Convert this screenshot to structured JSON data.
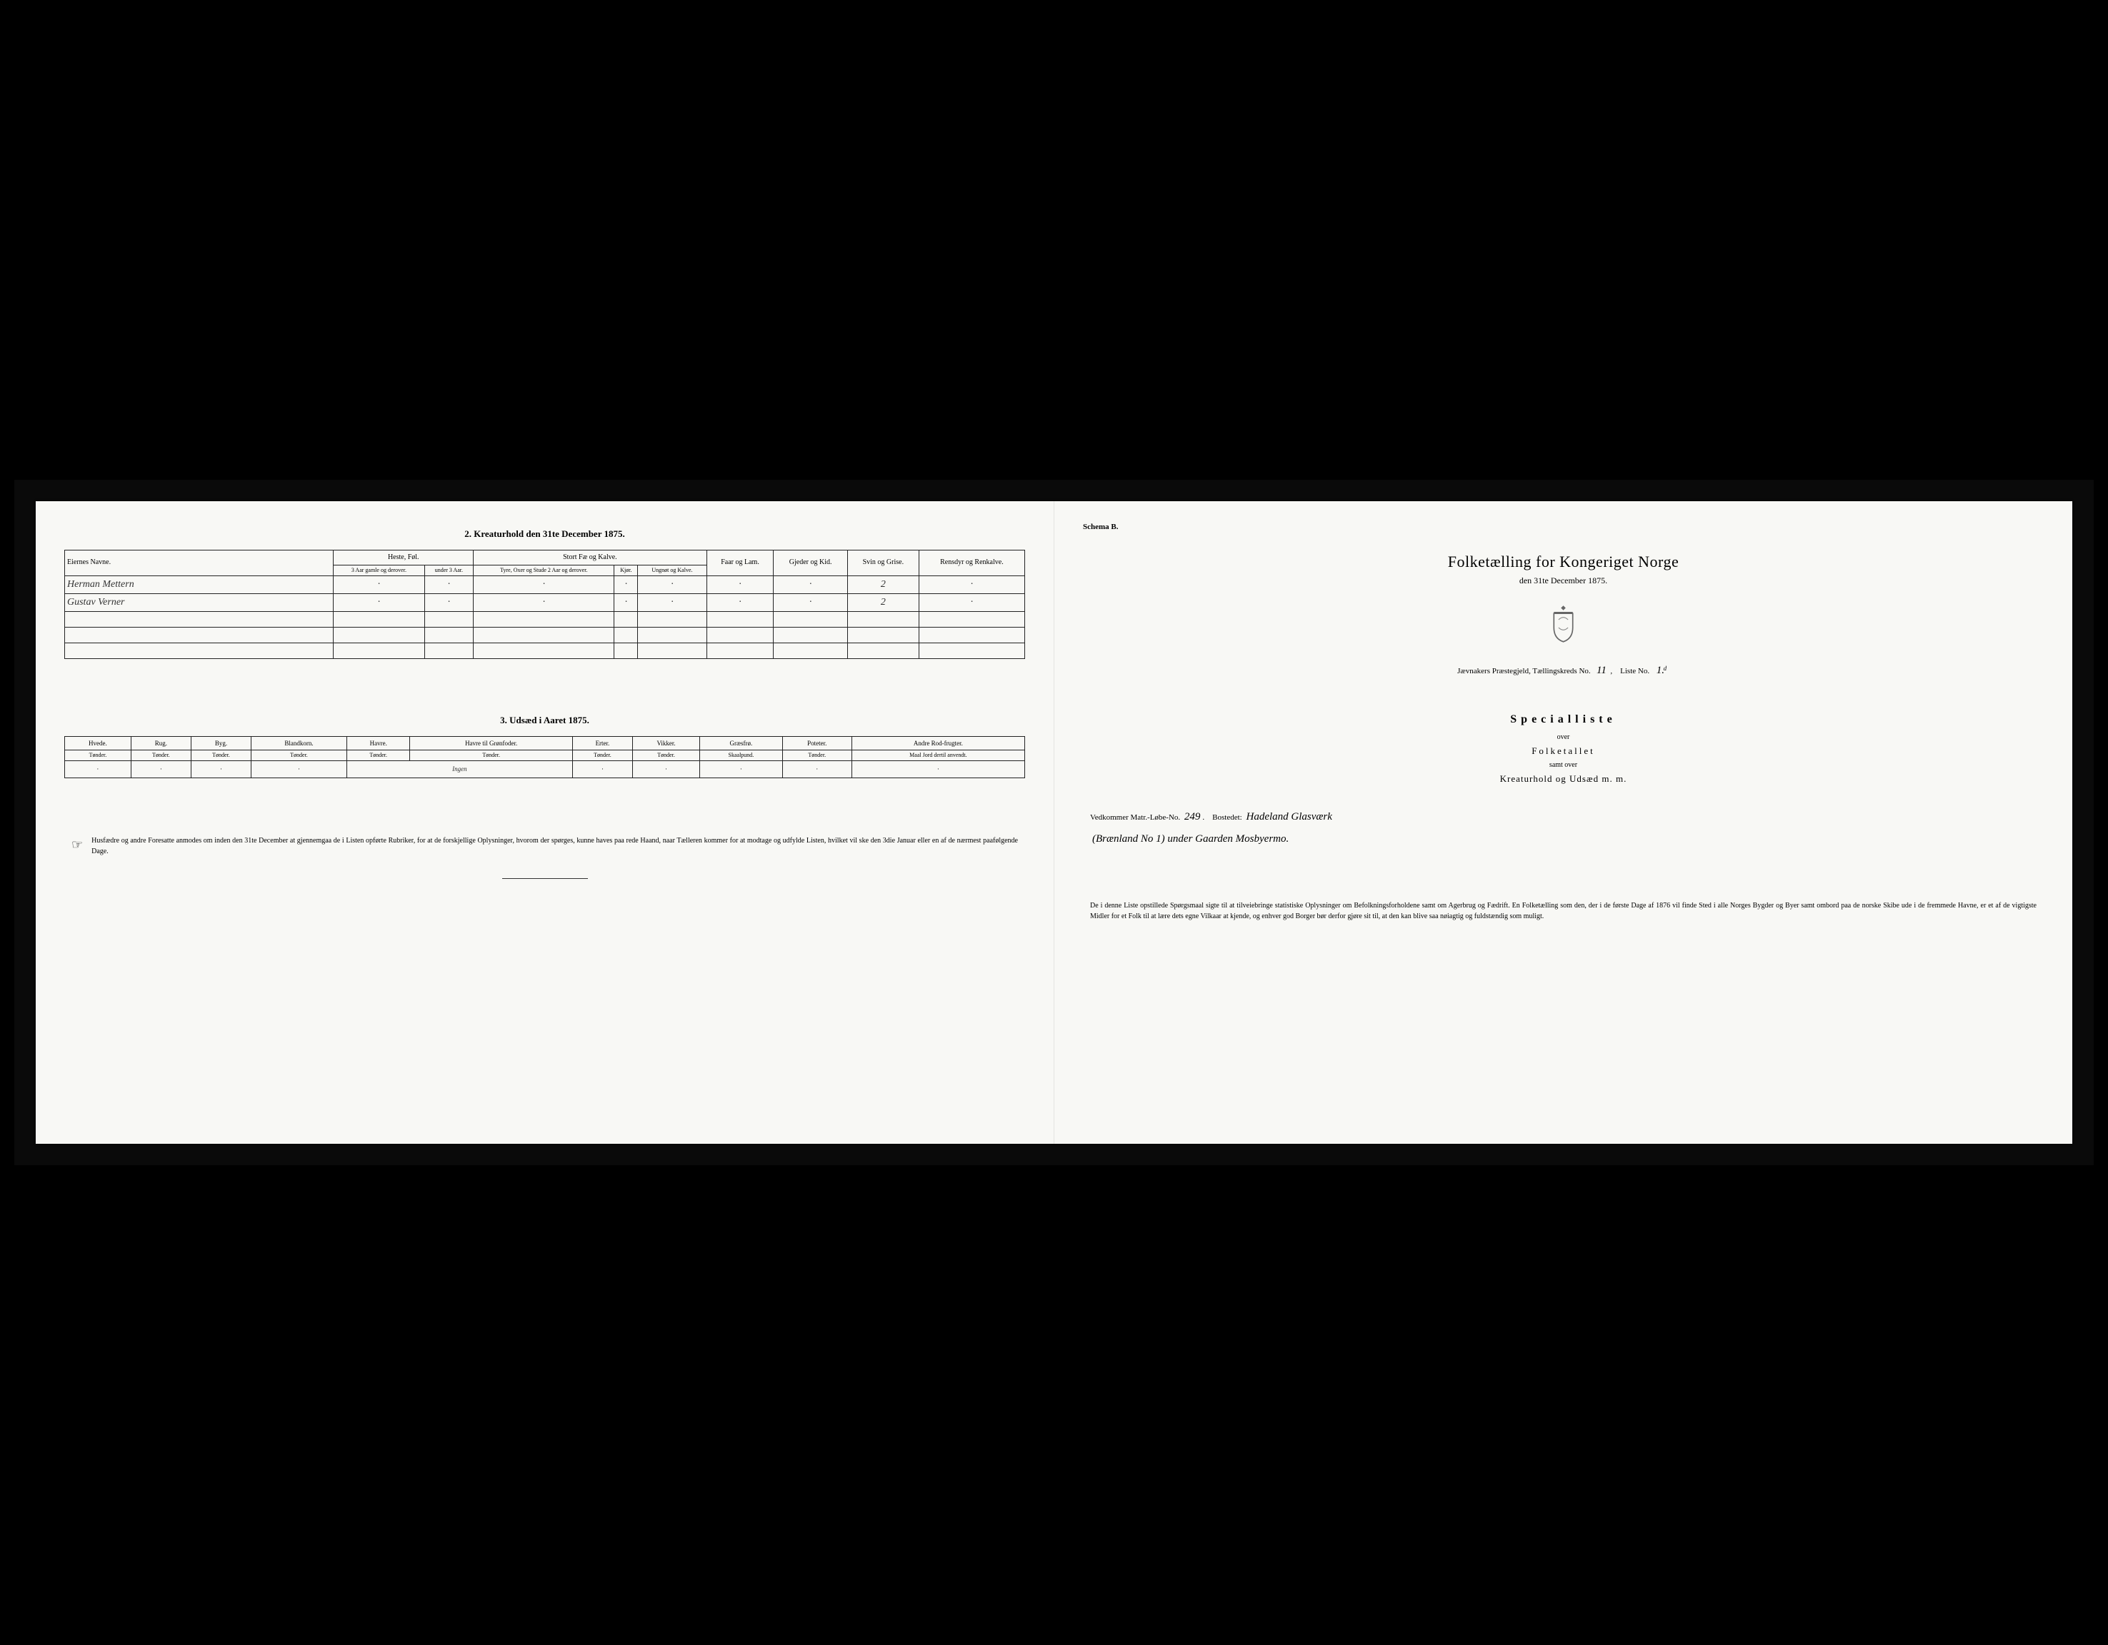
{
  "left": {
    "section2": {
      "title": "2.  Kreaturhold den 31te December 1875.",
      "col_owner": "Eiernes Navne.",
      "group_horses": "Heste, Føl.",
      "group_cattle": "Stort Fæ og Kalve.",
      "col_sheep": "Faar og Lam.",
      "col_goats": "Gjeder og Kid.",
      "col_pigs": "Svin og Grise.",
      "col_reindeer": "Rensdyr og Renkalve.",
      "sub_h1": "3 Aar gamle og derover.",
      "sub_h2": "under 3 Aar.",
      "sub_c1": "Tyre, Oxer og Stude 2 Aar og derover.",
      "sub_c2": "Kjør.",
      "sub_c3": "Ungnøt og Kalve.",
      "rows": [
        {
          "name": "Herman Mettern",
          "cells": [
            "·",
            "·",
            "·",
            "·",
            "·",
            "·",
            "·",
            "2",
            "·"
          ]
        },
        {
          "name": "Gustav Verner",
          "cells": [
            "·",
            "·",
            "·",
            "·",
            "·",
            "·",
            "·",
            "2",
            "·"
          ]
        }
      ]
    },
    "section3": {
      "title": "3.  Udsæd i Aaret 1875.",
      "headers": [
        "Hvede.",
        "Rug.",
        "Byg.",
        "Blandkorn.",
        "Havre.",
        "Havre til Grønfoder.",
        "Erter.",
        "Vikker.",
        "Græsfrø.",
        "Poteter.",
        "Andre Rod-frugter."
      ],
      "subunit": "Tønder.",
      "sub_graes": "Skaalpund.",
      "sub_last": "Maal Jord dertil anvendt.",
      "row": [
        "·",
        "·",
        "·",
        "·",
        "Ingen",
        "",
        "·",
        "·",
        "·",
        "·",
        "·"
      ]
    },
    "footer": "Husfædre og andre Foresatte anmodes om inden den 31te December at gjennemgaa de i Listen opførte Rubriker, for at de forskjellige Oplysninger, hvorom der spørges, kunne haves paa rede Haand, naar Tælleren kommer for at modtage og udfylde Listen, hvilket vil ske den 3die Januar eller en af de nærmest paafølgende Dage."
  },
  "right": {
    "schema": "Schema B.",
    "title": "Folketælling for Kongeriget Norge",
    "subtitle": "den 31te December 1875.",
    "district_prefix": "Jævnakers Præstegjeld, Tællingskreds No.",
    "district_no": "11",
    "liste_prefix": "Liste No.",
    "liste_no": "1.ͩ",
    "special": "Specialliste",
    "over": "over",
    "folketallet": "Folketallet",
    "samt": "samt over",
    "kreatur": "Kreaturhold og Udsæd m. m.",
    "matr_prefix": "Vedkommer Matr.-Løbe-No.",
    "matr_no": "249",
    "bosted_label": "Bostedet:",
    "bosted_val": "Hadeland Glasværk",
    "bosted_line2": "(Brænland No 1) under Gaarden Mosbyermo.",
    "footer": "De i denne Liste opstillede Spørgsmaal sigte til at tilveiebringe statistiske Oplysninger om Befolkningsforholdene samt om Agerbrug og Fædrift. En Folketælling som den, der i de første Dage af 1876 vil finde Sted i alle Norges Bygder og Byer samt ombord paa de norske Skibe ude i de fremmede Havne, er et af de vigtigste Midler for et Folk til at lære dets egne Vilkaar at kjende, og enhver god Borger bør derfor gjøre sit til, at den kan blive saa nøiagtig og fuldstændig som muligt."
  }
}
